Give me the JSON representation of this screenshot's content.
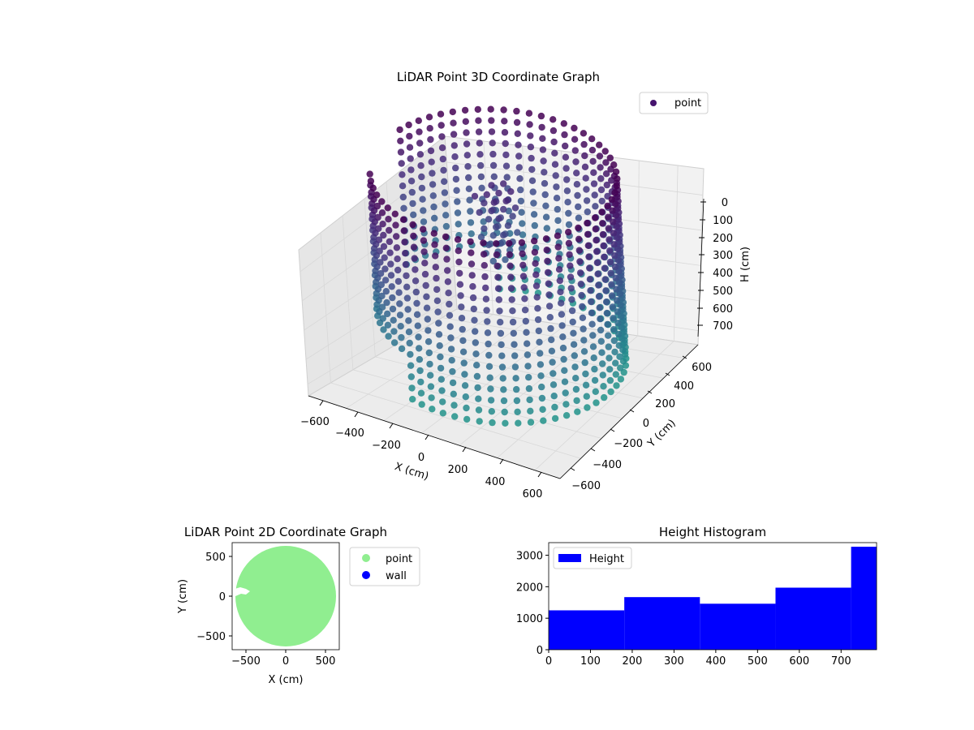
{
  "chart_data": [
    {
      "type": "scatter3d",
      "title": "LiDAR Point 3D Coordinate Graph",
      "xlabel": "X (cm)",
      "ylabel": "Y (cm)",
      "zlabel": "H (cm)",
      "xlim": [
        -650,
        650
      ],
      "ylim": [
        -650,
        650
      ],
      "zlim": [
        0,
        780
      ],
      "z_inverted": true,
      "xticks": [
        "−600",
        "−400",
        "−200",
        "0",
        "200",
        "400",
        "600"
      ],
      "yticks": [
        "−600",
        "−400",
        "−200",
        "0",
        "200",
        "400",
        "600"
      ],
      "zticks": [
        "0",
        "100",
        "200",
        "300",
        "400",
        "500",
        "600",
        "700"
      ],
      "legend": {
        "entries": [
          "point"
        ],
        "position": "upper-right"
      },
      "colormap": "viridis",
      "wall_radius": 560,
      "grid": true
    },
    {
      "type": "scatter",
      "title": "LiDAR Point 2D Coordinate Graph",
      "xlabel": "X (cm)",
      "ylabel": "Y (cm)",
      "xlim": [
        -680,
        680
      ],
      "ylim": [
        -680,
        680
      ],
      "xticks": [
        "−500",
        "0",
        "500"
      ],
      "yticks": [
        "−500",
        "0",
        "500"
      ],
      "legend": {
        "entries": [
          "point",
          "wall"
        ],
        "position": "outside-right"
      },
      "series": [
        {
          "name": "point",
          "color": "#90ee90",
          "shape": "disk",
          "radius": 630
        },
        {
          "name": "wall",
          "color": "#0000ff",
          "points": []
        }
      ]
    },
    {
      "type": "bar",
      "title": "Height Histogram",
      "xlim": [
        0,
        785
      ],
      "ylim": [
        0,
        3400
      ],
      "xticks": [
        "0",
        "100",
        "200",
        "300",
        "400",
        "500",
        "600",
        "700"
      ],
      "yticks": [
        "0",
        "1000",
        "2000",
        "3000"
      ],
      "legend": {
        "entries": [
          "Height"
        ],
        "position": "upper-left"
      },
      "color": "#0000ff",
      "bins": [
        {
          "start": 0,
          "end": 181,
          "value": 1250
        },
        {
          "start": 181,
          "end": 362,
          "value": 1670
        },
        {
          "start": 362,
          "end": 543,
          "value": 1460
        },
        {
          "start": 543,
          "end": 724,
          "value": 1970
        },
        {
          "start": 724,
          "end": 785,
          "value": 3270
        }
      ]
    }
  ]
}
